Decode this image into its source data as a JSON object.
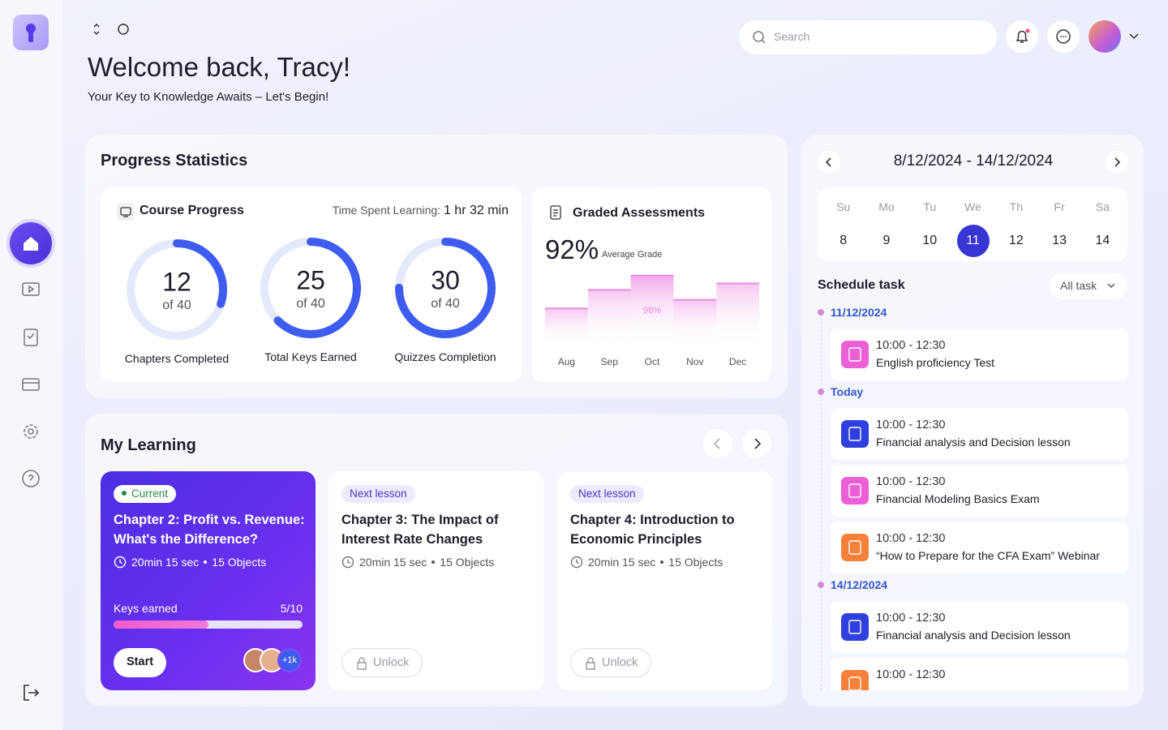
{
  "header": {
    "title": "Welcome back, Tracy!",
    "subtitle": "Your Key to Knowledge Awaits – Let's Begin!",
    "search_placeholder": "Search"
  },
  "progress": {
    "title": "Progress Statistics",
    "course": {
      "title": "Course Progress",
      "time_label": "Time Spent Learning:",
      "time_value": "1 hr 32 min",
      "rings": [
        {
          "value": 12,
          "total": 40,
          "total_label": "of 40",
          "label": "Chapters Completed"
        },
        {
          "value": 25,
          "total": 40,
          "total_label": "of 40",
          "label": "Total Keys Earned"
        },
        {
          "value": 30,
          "total": 40,
          "total_label": "of 40",
          "label": "Quizzes Completion"
        }
      ]
    },
    "graded": {
      "title": "Graded Assessments",
      "average": "92%",
      "average_label": "Average Grade"
    }
  },
  "chart_data": {
    "type": "bar",
    "categories": [
      "Aug",
      "Sep",
      "Oct",
      "Nov",
      "Dec"
    ],
    "values": [
      52,
      78,
      98,
      64,
      87
    ],
    "value_labels": [
      null,
      null,
      "98%",
      null,
      null
    ],
    "color": "#e78ae2",
    "ylim": [
      0,
      100
    ]
  },
  "learning": {
    "title": "My Learning",
    "cards": [
      {
        "badge": "Current",
        "title": "Chapter 2: Profit vs. Revenue: What's the Difference?",
        "duration": "20min 15 sec",
        "objects": "15 Objects",
        "keys_label": "Keys earned",
        "keys_text": "5/10",
        "keys": 5,
        "keys_max": 10,
        "button": "Start",
        "avatar_more": "+1k"
      },
      {
        "badge": "Next lesson",
        "title": "Chapter 3: The Impact of Interest Rate Changes",
        "duration": "20min 15 sec",
        "objects": "15 Objects",
        "button": "Unlock"
      },
      {
        "badge": "Next lesson",
        "title": "Chapter 4: Introduction to Economic Principles",
        "duration": "20min 15 sec",
        "objects": "15 Objects",
        "button": "Unlock"
      }
    ]
  },
  "schedule": {
    "range": "8/12/2024 - 14/12/2024",
    "days": [
      {
        "name": "Su",
        "date": "8"
      },
      {
        "name": "Mo",
        "date": "9"
      },
      {
        "name": "Tu",
        "date": "10"
      },
      {
        "name": "We",
        "date": "11",
        "selected": true
      },
      {
        "name": "Th",
        "date": "12"
      },
      {
        "name": "Fr",
        "date": "13"
      },
      {
        "name": "Sa",
        "date": "14"
      }
    ],
    "title": "Schedule task",
    "filter": "All task",
    "groups": [
      {
        "date": "11/12/2024",
        "tasks": [
          {
            "time": "10:00 - 12:30",
            "title": "English proficiency Test",
            "color": "#ec5fd6"
          }
        ]
      },
      {
        "date": "Today",
        "tasks": [
          {
            "time": "10:00 - 12:30",
            "title": "Financial analysis and Decision lesson",
            "color": "#2f3fe0"
          },
          {
            "time": "10:00 - 12:30",
            "title": "Financial Modeling Basics Exam",
            "color": "#ec5fd6"
          },
          {
            "time": "10:00 - 12:30",
            "title": "“How to Prepare for the CFA Exam” Webinar",
            "color": "#f7803a"
          }
        ]
      },
      {
        "date": "14/12/2024",
        "tasks": [
          {
            "time": "10:00 - 12:30",
            "title": "Financial analysis and Decision lesson",
            "color": "#2f3fe0"
          },
          {
            "time": "10:00 - 12:30",
            "color": "#f7803a"
          }
        ]
      }
    ]
  }
}
